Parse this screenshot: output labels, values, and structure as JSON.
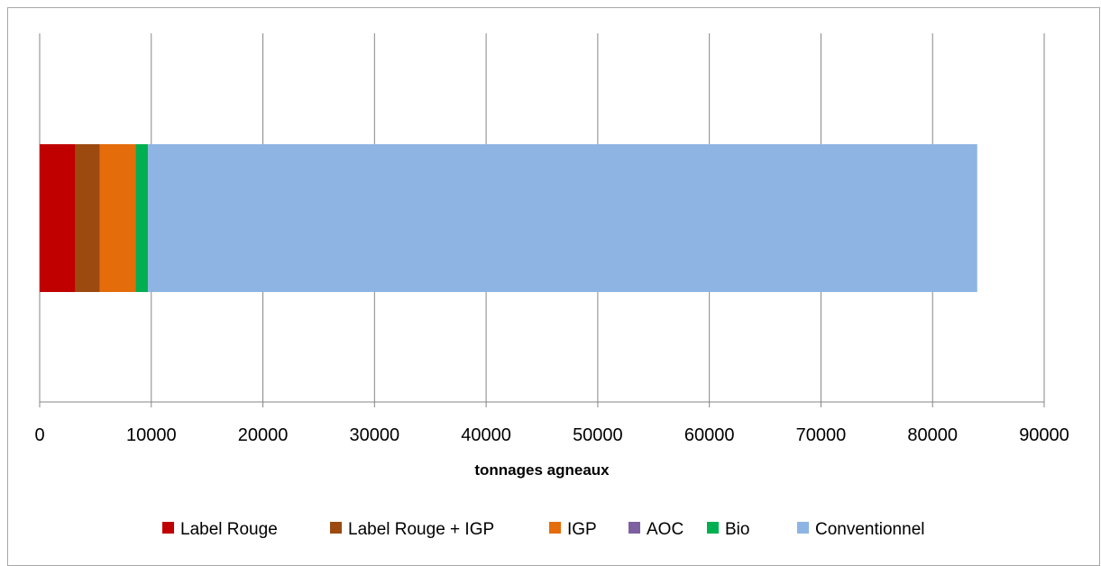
{
  "chart_data": {
    "type": "bar",
    "orientation": "horizontal",
    "stacked": true,
    "title": "",
    "xlabel": "tonnages agneaux",
    "ylabel": "",
    "xlim": [
      0,
      90000
    ],
    "x_ticks": [
      "0",
      "10000",
      "20000",
      "30000",
      "40000",
      "50000",
      "60000",
      "70000",
      "80000",
      "90000"
    ],
    "grid": true,
    "legend_position": "bottom",
    "categories": [
      ""
    ],
    "series": [
      {
        "name": "Label Rouge",
        "color": "#c00000",
        "values": [
          3200
        ]
      },
      {
        "name": "Label Rouge + IGP",
        "color": "#9c4a10",
        "values": [
          2200
        ]
      },
      {
        "name": "IGP",
        "color": "#e46c0a",
        "values": [
          3200
        ]
      },
      {
        "name": "AOC",
        "color": "#7d60a0",
        "values": [
          0
        ]
      },
      {
        "name": "Bio",
        "color": "#00b050",
        "values": [
          1100
        ]
      },
      {
        "name": "Conventionnel",
        "color": "#8eb4e3",
        "values": [
          74300
        ]
      }
    ]
  }
}
